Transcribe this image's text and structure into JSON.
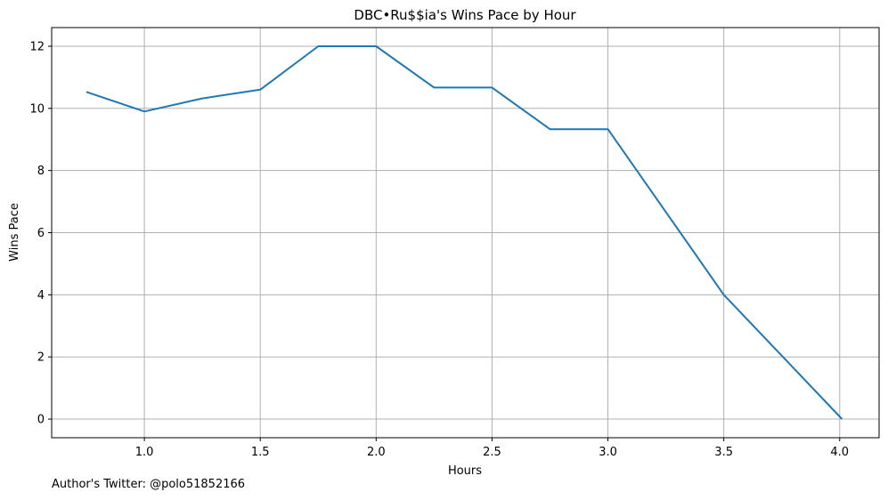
{
  "chart_data": {
    "type": "line",
    "title": "DBC•Ru$$ia's Wins Pace by Hour",
    "xlabel": "Hours",
    "ylabel": "Wins Pace",
    "xlim": [
      0.6,
      4.17
    ],
    "ylim": [
      -0.6,
      12.6
    ],
    "xticks": [
      1.0,
      1.5,
      2.0,
      2.5,
      3.0,
      3.5,
      4.0
    ],
    "xtick_labels": [
      "1.0",
      "1.5",
      "2.0",
      "2.5",
      "3.0",
      "3.5",
      "4.0"
    ],
    "yticks": [
      0,
      2,
      4,
      6,
      8,
      10,
      12
    ],
    "ytick_labels": [
      "0",
      "2",
      "4",
      "6",
      "8",
      "10",
      "12"
    ],
    "grid": true,
    "legend": false,
    "series": [
      {
        "color": "#1f77b4",
        "x": [
          0.75,
          1.0,
          1.25,
          1.5,
          1.75,
          2.0,
          2.25,
          2.5,
          2.75,
          3.0,
          3.5,
          4.01
        ],
        "y": [
          10.53,
          9.9,
          10.32,
          10.6,
          12.0,
          12.0,
          10.67,
          10.67,
          9.33,
          9.33,
          4.0,
          0.0
        ]
      }
    ]
  },
  "footer": {
    "note": "Author's Twitter: @polo51852166"
  }
}
